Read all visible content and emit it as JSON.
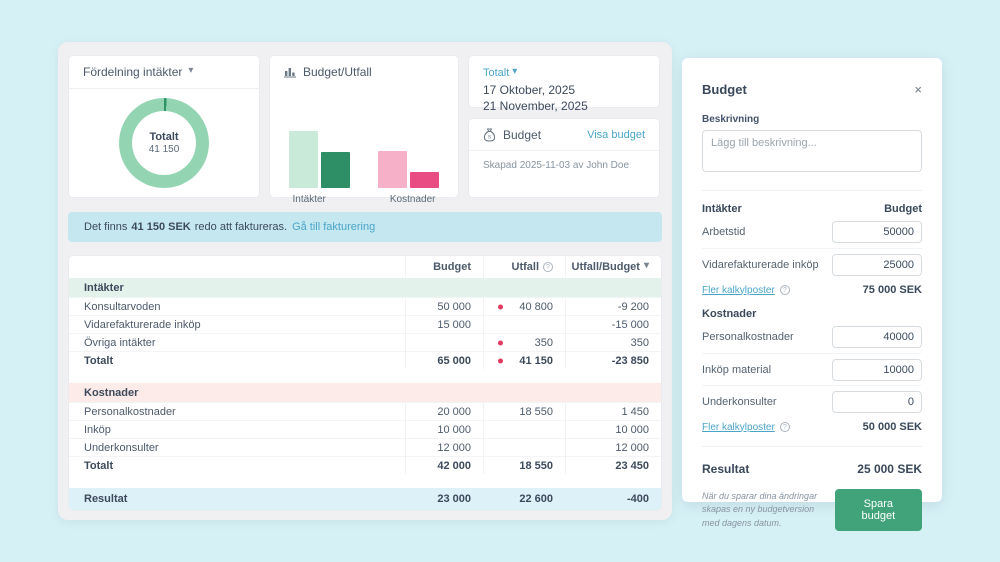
{
  "colors": {
    "page_bg": "#d6f1f6",
    "panel_bg": "#f0f0f2",
    "accent_link": "#4aa5c9",
    "donut_light": "#93d5b2",
    "donut_dark": "#2f9368",
    "bar_income_budget": "#c9ead9",
    "bar_income_utfall": "#2e8f67",
    "bar_cost_budget": "#f6b1c8",
    "bar_cost_utfall": "#e94b83",
    "dot_red": "#e23b61",
    "save_button_green": "#41a379",
    "section_income_bg": "#e3f2ea",
    "section_cost_bg": "#fdebe9",
    "result_row_bg": "#ddf1f8",
    "banner_bg": "#c5e7ef"
  },
  "cards": {
    "fordelning": {
      "title": "Fördelning intäkter",
      "center_label": "Totalt",
      "center_value": "41 150"
    },
    "budget_utfall": {
      "title": "Budget/Utfall",
      "category_income": "Intäkter",
      "category_cost": "Kostnader"
    },
    "period": {
      "selector_label": "Totalt",
      "date_from": "17 Oktober, 2025",
      "date_to": "21 November, 2025"
    },
    "budget_info": {
      "title": "Budget",
      "link_label": "Visa budget",
      "created_text": "Skapad 2025-11-03 av John Doe"
    }
  },
  "banner": {
    "text_pre": "Det finns",
    "amount": "41 150 SEK",
    "text_post": "redo att faktureras.",
    "link_label": "Gå till fakturering"
  },
  "table": {
    "columns": {
      "budget": "Budget",
      "utfall": "Utfall",
      "ratio": "Utfall/Budget"
    },
    "sections": {
      "income": "Intäkter",
      "costs": "Kostnader"
    },
    "rows": [
      {
        "label": "Konsultarvoden",
        "budget": "50 000",
        "utfall": "40 800",
        "ratio": "-9 200"
      },
      {
        "label": "Vidarefakturerade inköp",
        "budget": "15 000",
        "utfall": "",
        "ratio": "-15 000"
      },
      {
        "label": "Övriga intäkter",
        "budget": "",
        "utfall": "350",
        "ratio": "350"
      },
      {
        "label": "Totalt",
        "budget": "65 000",
        "utfall": "41 150",
        "ratio": "-23 850"
      },
      {
        "label": "Personalkostnader",
        "budget": "20 000",
        "utfall": "18 550",
        "ratio": "1 450"
      },
      {
        "label": "Inköp",
        "budget": "10 000",
        "utfall": "",
        "ratio": "10 000"
      },
      {
        "label": "Underkonsulter",
        "budget": "12 000",
        "utfall": "",
        "ratio": "12 000"
      },
      {
        "label": "Totalt",
        "budget": "42 000",
        "utfall": "18 550",
        "ratio": "23 450"
      }
    ],
    "result_row": {
      "label": "Resultat",
      "budget": "23 000",
      "utfall": "22 600",
      "ratio": "-400"
    }
  },
  "panel": {
    "title": "Budget",
    "close_icon": "×",
    "description_label": "Beskrivning",
    "description_placeholder": "Lägg till beskrivning...",
    "income": {
      "section_label": "Intäkter",
      "column_label": "Budget",
      "rows": [
        {
          "label": "Arbetstid",
          "value": "50000"
        },
        {
          "label": "Vidarefakturerade inköp",
          "value": "25000"
        }
      ],
      "more_link": "Fler kalkylposter",
      "total": "75 000 SEK"
    },
    "costs": {
      "section_label": "Kostnader",
      "rows": [
        {
          "label": "Personalkostnader",
          "value": "40000"
        },
        {
          "label": "Inköp material",
          "value": "10000"
        },
        {
          "label": "Underkonsulter",
          "value": "0"
        }
      ],
      "more_link": "Fler kalkylposter",
      "total": "50 000 SEK"
    },
    "result_label": "Resultat",
    "result_value": "25 000 SEK",
    "note": "När du sparar dina ändringar skapas en ny budgetversion med dagens datum.",
    "save_button": "Spara budget"
  },
  "chart_data": [
    {
      "type": "pie",
      "title": "Fördelning intäkter",
      "labels": [
        "Konsultarvoden",
        "Övriga intäkter"
      ],
      "values": [
        40800,
        350
      ],
      "colors": [
        "#93d5b2",
        "#2f9368"
      ],
      "center_label": "Totalt",
      "center_value": 41150,
      "donut": true
    },
    {
      "type": "bar",
      "title": "Budget/Utfall",
      "categories": [
        "Intäkter",
        "Kostnader"
      ],
      "series": [
        {
          "name": "Budget",
          "values": [
            65000,
            42000
          ],
          "colors": [
            "#c9ead9",
            "#f6b1c8"
          ]
        },
        {
          "name": "Utfall",
          "values": [
            41150,
            18550
          ],
          "colors": [
            "#2e8f67",
            "#e94b83"
          ]
        }
      ],
      "ylim": [
        0,
        65000
      ],
      "grid": false,
      "legend": "none"
    }
  ]
}
